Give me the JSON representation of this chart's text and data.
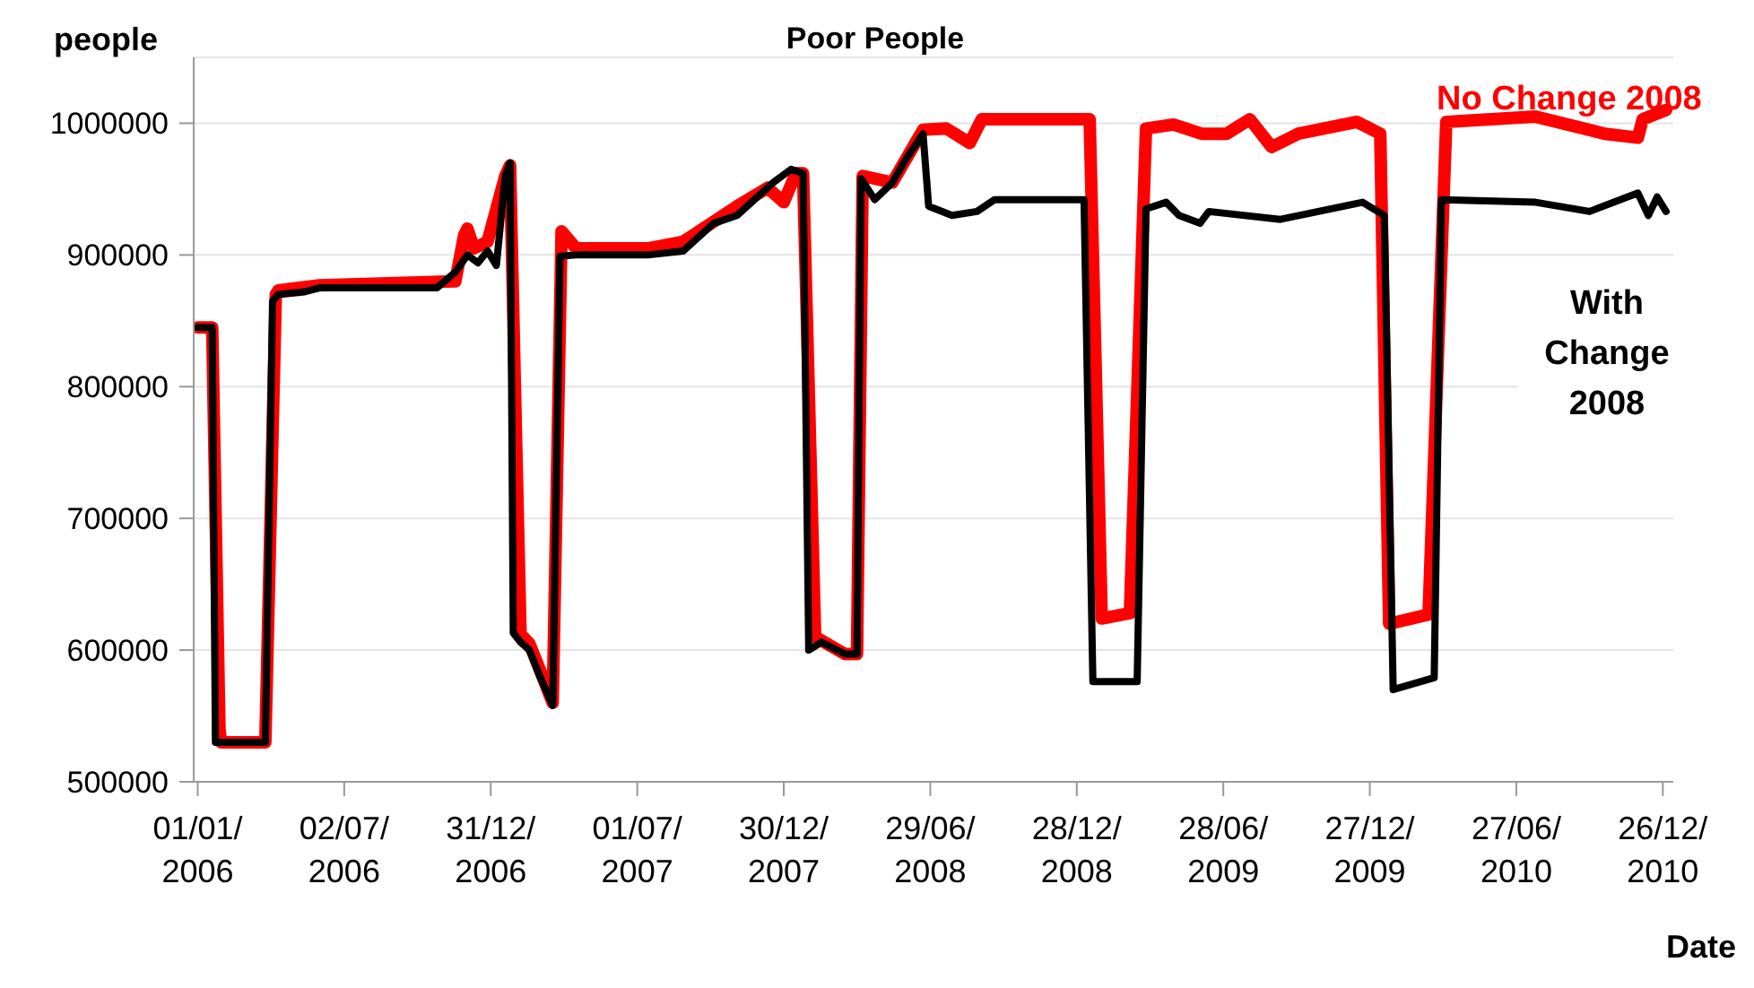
{
  "chart_data": {
    "type": "line",
    "title": "Poor People",
    "xlabel": "Date",
    "ylabel": "people",
    "xlim": [
      "2005-12-27",
      "2011-01-08"
    ],
    "ylim": [
      500000,
      1050000
    ],
    "yticks": [
      500000,
      600000,
      700000,
      800000,
      900000,
      1000000
    ],
    "xticks": [
      {
        "value": "2006-01-01",
        "label": "01/01/2006"
      },
      {
        "value": "2006-07-02",
        "label": "02/07/2006"
      },
      {
        "value": "2006-12-31",
        "label": "31/12/2006"
      },
      {
        "value": "2007-07-01",
        "label": "01/07/2007"
      },
      {
        "value": "2007-12-30",
        "label": "30/12/2007"
      },
      {
        "value": "2008-06-29",
        "label": "29/06/2008"
      },
      {
        "value": "2008-12-28",
        "label": "28/12/2008"
      },
      {
        "value": "2009-06-28",
        "label": "28/06/2009"
      },
      {
        "value": "2009-12-27",
        "label": "27/12/2009"
      },
      {
        "value": "2010-06-27",
        "label": "27/06/2010"
      },
      {
        "value": "2010-12-26",
        "label": "26/12/2010"
      }
    ],
    "grid": "y",
    "marker": "none",
    "line_style": "solid",
    "series": [
      {
        "name": "No Change 2008",
        "color": "#ff0000",
        "x": [
          "2006-01-01",
          "2006-01-19",
          "2006-01-28",
          "2006-01-30",
          "2006-03-26",
          "2006-04-08",
          "2006-04-11",
          "2006-06-01",
          "2006-11-17",
          "2006-11-28",
          "2006-12-02",
          "2006-12-10",
          "2006-12-27",
          "2007-01-18",
          "2007-01-24",
          "2007-01-30",
          "2007-02-06",
          "2007-02-17",
          "2007-03-02",
          "2007-03-18",
          "2007-03-29",
          "2007-04-16",
          "2007-07-14",
          "2007-08-27",
          "2007-11-02",
          "2007-12-10",
          "2007-12-30",
          "2008-01-14",
          "2008-01-23",
          "2008-02-07",
          "2008-03-15",
          "2008-03-30",
          "2008-04-06",
          "2008-05-13",
          "2008-06-20",
          "2008-07-19",
          "2008-08-17",
          "2008-09-01",
          "2009-01-13",
          "2009-01-28",
          "2009-03-04",
          "2009-03-24",
          "2009-04-27",
          "2009-06-01",
          "2009-07-02",
          "2009-07-31",
          "2009-08-27",
          "2009-09-29",
          "2009-12-11",
          "2010-01-09",
          "2010-01-20",
          "2010-03-10",
          "2010-04-01",
          "2010-07-21",
          "2010-10-15",
          "2010-11-25",
          "2010-12-01",
          "2010-12-30"
        ],
        "values": [
          845000,
          845000,
          540000,
          530000,
          530000,
          870000,
          873000,
          877000,
          880000,
          915000,
          920000,
          905000,
          910000,
          960000,
          968000,
          800000,
          612000,
          605000,
          585000,
          560000,
          918000,
          905000,
          905000,
          910000,
          937000,
          951000,
          940000,
          962000,
          962000,
          610000,
          597000,
          597000,
          960000,
          955000,
          995000,
          996000,
          985000,
          1003000,
          1003000,
          624000,
          628000,
          996000,
          999000,
          992000,
          992000,
          1003000,
          982000,
          992000,
          1001000,
          992000,
          620000,
          627000,
          1001000,
          1005000,
          992000,
          989000,
          1003000,
          1010000
        ]
      },
      {
        "name": "With Change 2008",
        "color": "#000000",
        "x": [
          "2006-01-01",
          "2006-01-19",
          "2006-01-23",
          "2006-03-26",
          "2006-04-04",
          "2006-04-11",
          "2006-05-14",
          "2006-06-01",
          "2006-10-25",
          "2006-11-17",
          "2006-12-02",
          "2006-12-15",
          "2006-12-27",
          "2007-01-07",
          "2007-01-18",
          "2007-01-24",
          "2007-01-28",
          "2007-02-06",
          "2007-02-17",
          "2007-03-02",
          "2007-03-18",
          "2007-03-27",
          "2007-04-16",
          "2007-07-14",
          "2007-08-27",
          "2007-10-04",
          "2007-11-02",
          "2007-12-17",
          "2008-01-08",
          "2008-01-23",
          "2008-01-30",
          "2008-02-15",
          "2008-03-15",
          "2008-03-30",
          "2008-04-04",
          "2008-04-21",
          "2008-05-13",
          "2008-05-29",
          "2008-06-20",
          "2008-06-27",
          "2008-07-26",
          "2008-08-26",
          "2008-09-17",
          "2009-01-06",
          "2009-01-17",
          "2009-03-13",
          "2009-03-24",
          "2009-04-18",
          "2009-05-04",
          "2009-05-30",
          "2009-06-10",
          "2009-09-07",
          "2009-12-18",
          "2010-01-14",
          "2010-01-25",
          "2010-03-17",
          "2010-03-26",
          "2010-07-21",
          "2010-09-26",
          "2010-11-25",
          "2010-12-08",
          "2010-12-19",
          "2010-12-30"
        ],
        "values": [
          845000,
          845000,
          530000,
          530000,
          865000,
          870000,
          872000,
          875000,
          875000,
          887000,
          900000,
          894000,
          903000,
          892000,
          960000,
          970000,
          613000,
          606000,
          600000,
          580000,
          558000,
          899000,
          900000,
          900000,
          903000,
          924000,
          930000,
          955000,
          965000,
          962000,
          600000,
          606000,
          597000,
          597000,
          958000,
          942000,
          955000,
          972000,
          992000,
          937000,
          930000,
          933000,
          942000,
          942000,
          576000,
          576000,
          935000,
          940000,
          930000,
          924000,
          933000,
          927000,
          940000,
          930000,
          570000,
          579000,
          942000,
          940000,
          933000,
          947000,
          930000,
          944000,
          933000
        ]
      }
    ]
  }
}
